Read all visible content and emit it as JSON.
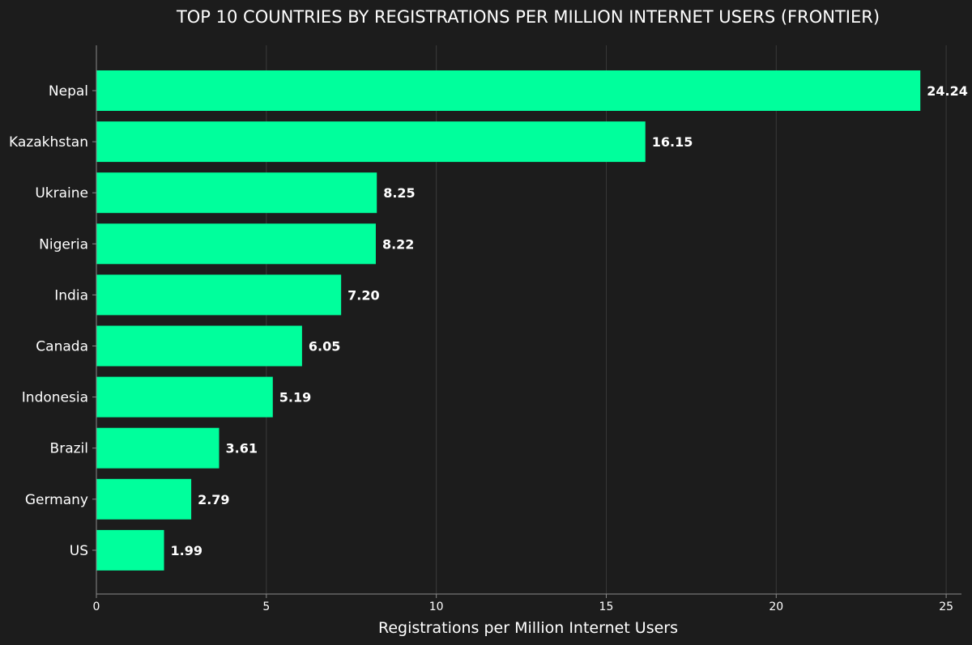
{
  "colors": {
    "background": "#1c1c1c",
    "bar": "#00ff9c",
    "grid": "#3a3a3a",
    "axis": "#8a8a8a",
    "text": "#ffffff"
  },
  "chart_data": {
    "type": "bar",
    "orientation": "horizontal",
    "title": "TOP 10 COUNTRIES BY REGISTRATIONS PER MILLION INTERNET USERS (FRONTIER)",
    "xlabel": "Registrations per Million Internet Users",
    "ylabel": "",
    "categories": [
      "Nepal",
      "Kazakhstan",
      "Ukraine",
      "Nigeria",
      "India",
      "Canada",
      "Indonesia",
      "Brazil",
      "Germany",
      "US"
    ],
    "values": [
      24.24,
      16.15,
      8.25,
      8.22,
      7.2,
      6.05,
      5.19,
      3.61,
      2.79,
      1.99
    ],
    "value_labels": [
      "24.24",
      "16.15",
      "8.25",
      "8.22",
      "7.20",
      "6.05",
      "5.19",
      "3.61",
      "2.79",
      "1.99"
    ],
    "xlim": [
      0,
      25.45
    ],
    "xticks": [
      0,
      5,
      10,
      15,
      20,
      25
    ],
    "xtick_labels": [
      "0",
      "5",
      "10",
      "15",
      "20",
      "25"
    ],
    "grid": "vertical",
    "legend": "none"
  }
}
